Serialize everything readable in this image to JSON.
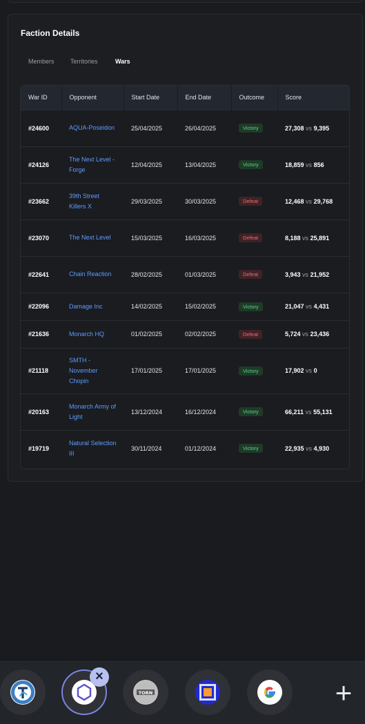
{
  "panel": {
    "title": "Faction Details"
  },
  "tabs": [
    {
      "label": "Members",
      "active": false
    },
    {
      "label": "Territories",
      "active": false
    },
    {
      "label": "Wars",
      "active": true
    }
  ],
  "table": {
    "headers": [
      "War ID",
      "Opponent",
      "Start Date",
      "End Date",
      "Outcome",
      "Score"
    ],
    "vs_label": "vs",
    "rows": [
      {
        "id": "#24600",
        "opponent": "AQUA-Poseidon",
        "start": "25/04/2025",
        "end": "26/04/2025",
        "outcome": "Victory",
        "score_a": "27,308",
        "score_b": "9,395"
      },
      {
        "id": "#24126",
        "opponent": "The Next Level - Forge",
        "start": "12/04/2025",
        "end": "13/04/2025",
        "outcome": "Victory",
        "score_a": "18,859",
        "score_b": "856"
      },
      {
        "id": "#23662",
        "opponent": "39th Street Killers X",
        "start": "29/03/2025",
        "end": "30/03/2025",
        "outcome": "Defeat",
        "score_a": "12,468",
        "score_b": "29,768"
      },
      {
        "id": "#23070",
        "opponent": "The Next Level",
        "start": "15/03/2025",
        "end": "16/03/2025",
        "outcome": "Defeat",
        "score_a": "8,188",
        "score_b": "25,891"
      },
      {
        "id": "#22641",
        "opponent": "Chain Reaction",
        "start": "28/02/2025",
        "end": "01/03/2025",
        "outcome": "Defeat",
        "score_a": "3,943",
        "score_b": "21,952"
      },
      {
        "id": "#22096",
        "opponent": "Damage Inc",
        "start": "14/02/2025",
        "end": "15/02/2025",
        "outcome": "Victory",
        "score_a": "21,047",
        "score_b": "4,431"
      },
      {
        "id": "#21636",
        "opponent": "Monarch HQ",
        "start": "01/02/2025",
        "end": "02/02/2025",
        "outcome": "Defeat",
        "score_a": "5,724",
        "score_b": "23,436"
      },
      {
        "id": "#21118",
        "opponent": "SMTH - November Chopin",
        "start": "17/01/2025",
        "end": "17/01/2025",
        "outcome": "Victory",
        "score_a": "17,902",
        "score_b": "0"
      },
      {
        "id": "#20163",
        "opponent": "Monarch Army of Light",
        "start": "13/12/2024",
        "end": "16/12/2024",
        "outcome": "Victory",
        "score_a": "66,211",
        "score_b": "55,131"
      },
      {
        "id": "#19719",
        "opponent": "Natural Selection III",
        "start": "30/11/2024",
        "end": "01/12/2024",
        "outcome": "Victory",
        "score_a": "22,935",
        "score_b": "4,930"
      }
    ]
  },
  "colors": {
    "victory": "#5fd48a",
    "defeat": "#ef6b73",
    "link": "#5e9cff"
  },
  "dock": {
    "tabs": [
      {
        "icon": "torn-stats-icon",
        "active": false
      },
      {
        "icon": "hexagon-extension-icon",
        "active": true
      },
      {
        "icon": "torn-logo-icon",
        "active": false
      },
      {
        "icon": "dans-tools-icon",
        "active": false
      },
      {
        "icon": "google-icon",
        "active": false
      }
    ],
    "close_icon": "close-icon",
    "add_icon": "plus-icon"
  }
}
